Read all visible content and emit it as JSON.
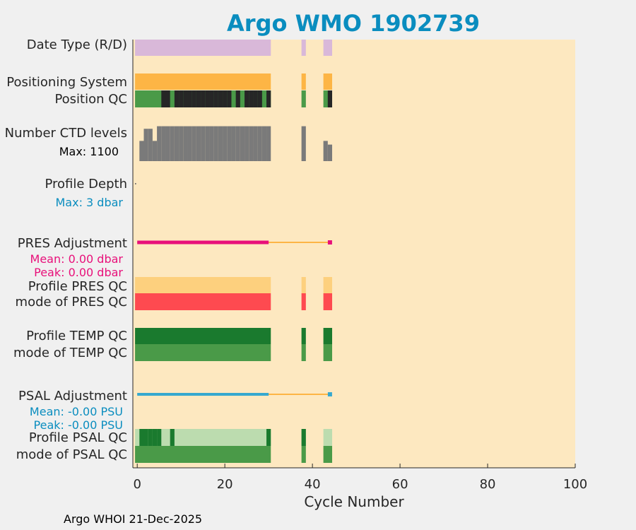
{
  "chart_data": {
    "type": "heatmap",
    "title": "Argo WMO 1902739",
    "xlabel": "Cycle Number",
    "xlim": [
      -1,
      100
    ],
    "xticks": [
      0,
      20,
      40,
      60,
      80,
      100
    ],
    "colors": {
      "background": "#fde8c0",
      "title": "#0a8dbf",
      "date_type": "#d9b8d9",
      "positioning": "#fdb545",
      "qc_good": "#4a9a48",
      "qc_dark": "#262626",
      "ctd": "#7a7a7a",
      "pres_adj": "#e8107a",
      "pres_qc_flag": "#fdd07e",
      "pres_qc_mode": "#fe4a50",
      "temp_qc_flag": "#1a7a2e",
      "temp_qc_mode": "#4a9a48",
      "psal_adj": "#36a8cf",
      "psal_qc_light": "#bcdcaf",
      "psal_qc_dark": "#1a7a2e",
      "adj_line": "#fdb545"
    },
    "rows": [
      {
        "label": "Date Type (R/D)",
        "key": "date_type"
      },
      {
        "label": "Positioning System",
        "key": "positioning"
      },
      {
        "label": "Position QC",
        "key": "position_qc"
      },
      {
        "label": "Number CTD levels",
        "key": "ctd"
      },
      {
        "label": "Profile Depth",
        "key": "depth"
      },
      {
        "label": "PRES Adjustment",
        "key": "pres_adj"
      },
      {
        "label": "Profile PRES QC",
        "key": "pres_qc_flag"
      },
      {
        "label": "mode of PRES QC",
        "key": "pres_qc_mode"
      },
      {
        "label": "Profile TEMP QC",
        "key": "temp_qc_flag"
      },
      {
        "label": "mode of TEMP QC",
        "key": "temp_qc_mode"
      },
      {
        "label": "PSAL Adjustment",
        "key": "psal_adj"
      },
      {
        "label": "Profile PSAL QC",
        "key": "psal_qc_flag"
      },
      {
        "label": "mode of PSAL QC",
        "key": "psal_qc_mode"
      }
    ],
    "annotations": {
      "ctd_max": "Max: 1100",
      "depth_max": "Max:    3 dbar",
      "pres_mean": "Mean: 0.00 dbar",
      "pres_peak": "Peak: 0.00 dbar",
      "psal_mean": "Mean: -0.00 PSU",
      "psal_peak": "Peak: -0.00 PSU"
    },
    "cycle_segments": [
      [
        0,
        30
      ],
      [
        38,
        38
      ],
      [
        43,
        44
      ]
    ],
    "position_qc_dark_cycles": [
      6,
      7,
      9,
      10,
      11,
      12,
      13,
      14,
      15,
      16,
      17,
      18,
      19,
      20,
      21,
      23,
      25,
      26,
      27,
      28,
      30,
      44
    ],
    "ctd_levels_fraction": {
      "0": 0.0,
      "1": 0.55,
      "2": 0.88,
      "3": 0.88,
      "4": 0.55,
      "5": 0.95,
      "6": 0.95,
      "7": 0.95,
      "8": 0.95,
      "9": 0.95,
      "10": 0.95,
      "11": 0.95,
      "12": 0.95,
      "13": 0.95,
      "14": 0.95,
      "15": 0.95,
      "16": 0.95,
      "17": 0.95,
      "18": 0.95,
      "19": 0.95,
      "20": 0.95,
      "21": 0.95,
      "22": 0.95,
      "23": 0.95,
      "24": 0.95,
      "25": 0.95,
      "26": 0.95,
      "27": 0.95,
      "28": 0.95,
      "29": 0.95,
      "30": 0.95,
      "38": 0.95,
      "43": 0.55,
      "44": 0.45
    },
    "psal_qc_dark_cycles": [
      1,
      2,
      3,
      4,
      5,
      8,
      30,
      38
    ]
  },
  "footer": "Argo WHOI 21-Dec-2025"
}
